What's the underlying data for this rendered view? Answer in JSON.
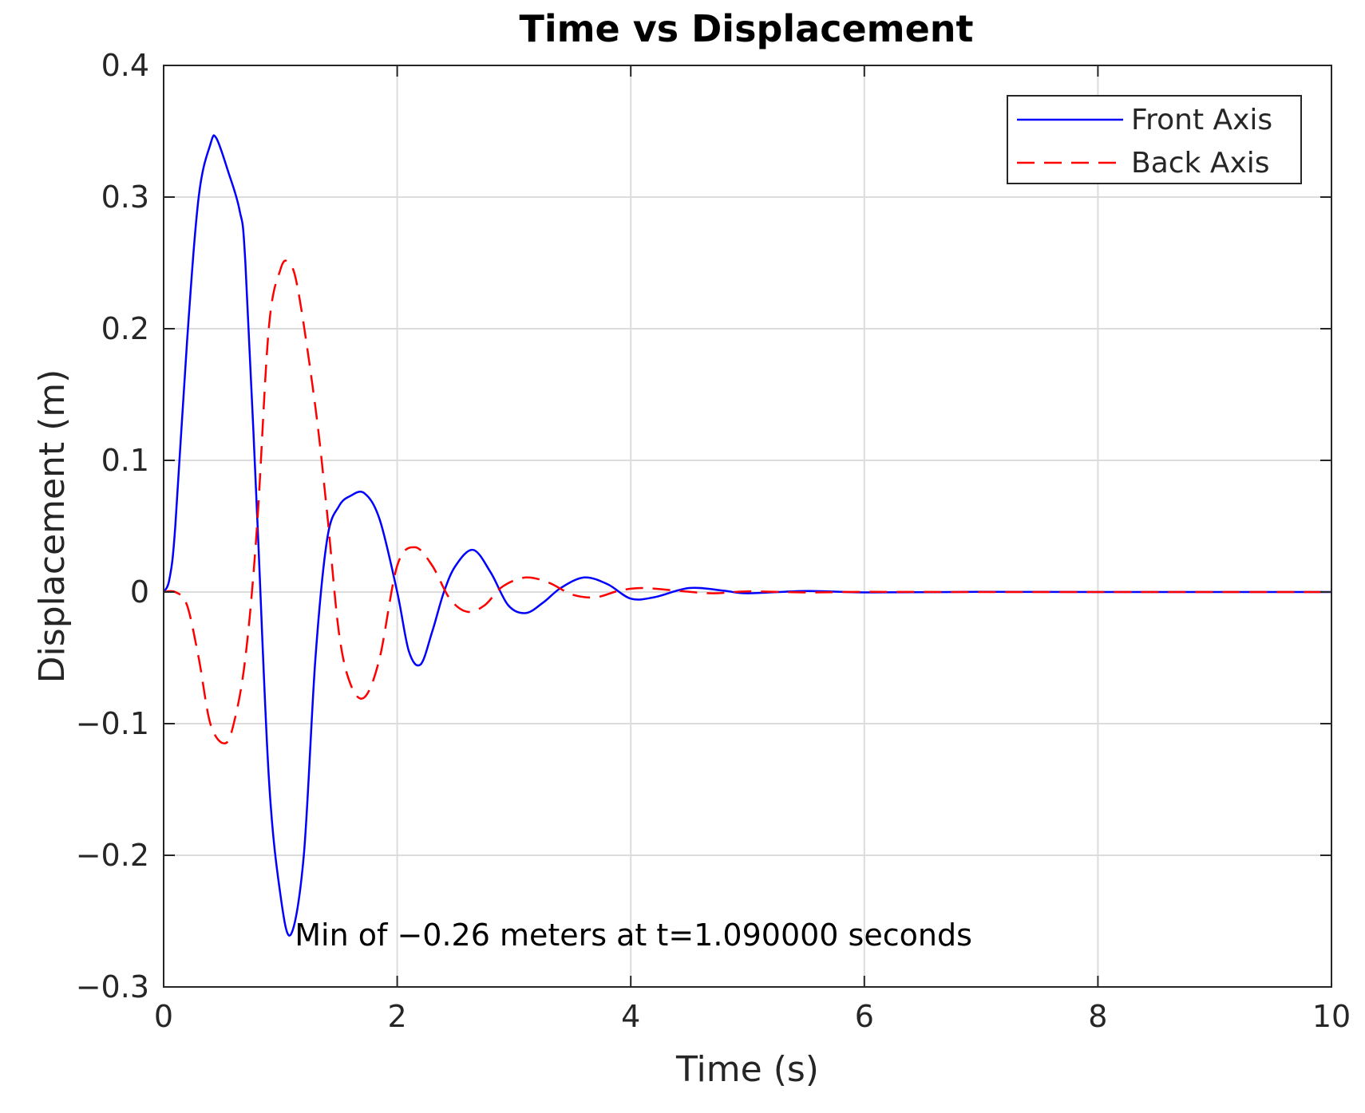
{
  "chart_data": {
    "type": "line",
    "title": "Time vs Displacement",
    "xlabel": "Time (s)",
    "ylabel": "Displacement (m)",
    "xlim": [
      0,
      10
    ],
    "ylim": [
      -0.3,
      0.4
    ],
    "xticks": [
      0,
      2,
      4,
      6,
      8,
      10
    ],
    "xtick_labels": [
      "0",
      "2",
      "4",
      "6",
      "8",
      "10"
    ],
    "yticks": [
      -0.3,
      -0.2,
      -0.1,
      0,
      0.1,
      0.2,
      0.3,
      0.4
    ],
    "ytick_labels": [
      "−0.3",
      "−0.2",
      "−0.1",
      "0",
      "0.1",
      "0.2",
      "0.3",
      "0.4"
    ],
    "grid": true,
    "legend_position": "top-right",
    "series": [
      {
        "name": "Front Axis",
        "color": "#0000ff",
        "style": "solid",
        "x": [
          0,
          0.05,
          0.1,
          0.2,
          0.3,
          0.4,
          0.45,
          0.55,
          0.65,
          0.7,
          0.8,
          0.9,
          1.0,
          1.09,
          1.2,
          1.3,
          1.4,
          1.5,
          1.6,
          1.72,
          1.85,
          2.0,
          2.1,
          2.2,
          2.3,
          2.4,
          2.5,
          2.65,
          2.8,
          2.95,
          3.1,
          3.25,
          3.4,
          3.6,
          3.8,
          4.0,
          4.2,
          4.5,
          4.8,
          5.0,
          5.5,
          6.0,
          7.0,
          8.0,
          9.0,
          10.0
        ],
        "y": [
          0,
          0.01,
          0.05,
          0.19,
          0.3,
          0.34,
          0.345,
          0.32,
          0.29,
          0.25,
          0.06,
          -0.14,
          -0.23,
          -0.26,
          -0.2,
          -0.05,
          0.04,
          0.065,
          0.073,
          0.075,
          0.055,
          0.0,
          -0.045,
          -0.055,
          -0.03,
          0.0,
          0.02,
          0.032,
          0.015,
          -0.01,
          -0.016,
          -0.008,
          0.003,
          0.011,
          0.006,
          -0.005,
          -0.004,
          0.003,
          0.001,
          -0.001,
          0.0008,
          -0.0003,
          0.0001,
          0,
          0,
          0
        ]
      },
      {
        "name": "Back Axis",
        "color": "#ff0000",
        "style": "dashed",
        "x": [
          0,
          0.1,
          0.2,
          0.3,
          0.4,
          0.52,
          0.6,
          0.7,
          0.8,
          0.9,
          1.0,
          1.07,
          1.15,
          1.3,
          1.4,
          1.5,
          1.6,
          1.72,
          1.85,
          2.0,
          2.15,
          2.3,
          2.45,
          2.6,
          2.75,
          2.9,
          3.1,
          3.3,
          3.5,
          3.7,
          3.9,
          4.1,
          4.4,
          4.7,
          5.0,
          5.5,
          6.0,
          7.0,
          8.0,
          9.0,
          10.0
        ],
        "y": [
          0,
          0.0,
          -0.01,
          -0.05,
          -0.1,
          -0.115,
          -0.1,
          -0.05,
          0.05,
          0.2,
          0.245,
          0.25,
          0.23,
          0.14,
          0.06,
          -0.03,
          -0.07,
          -0.08,
          -0.05,
          0.02,
          0.034,
          0.02,
          -0.005,
          -0.015,
          -0.01,
          0.004,
          0.011,
          0.007,
          -0.002,
          -0.004,
          0.001,
          0.003,
          0.001,
          -0.001,
          0.0005,
          -0.0003,
          0.0001,
          0,
          0,
          0,
          0
        ]
      }
    ],
    "annotation": {
      "text": "Min of −0.26 meters at t=1.090000 seconds",
      "x": 1.15,
      "y": -0.26
    }
  }
}
